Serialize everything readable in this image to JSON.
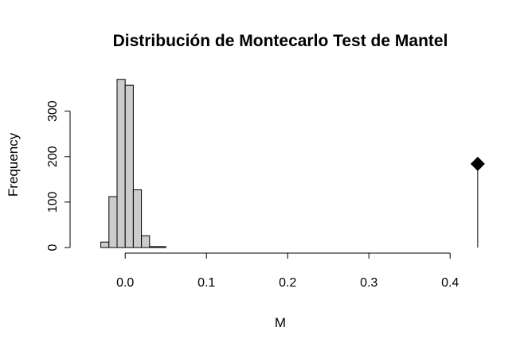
{
  "chart_data": {
    "type": "bar",
    "title": "Distribución de Montecarlo Test de Mantel",
    "xlabel": "M",
    "ylabel": "Frequency",
    "xlim": [
      -0.06,
      0.44
    ],
    "ylim": [
      0,
      380
    ],
    "x_ticks": [
      0.0,
      0.1,
      0.2,
      0.3,
      0.4
    ],
    "x_tick_labels": [
      "0.0",
      "0.1",
      "0.2",
      "0.3",
      "0.4"
    ],
    "y_ticks": [
      0,
      100,
      200,
      300
    ],
    "y_tick_labels": [
      "0",
      "100",
      "200",
      "300"
    ],
    "bins": [
      {
        "x0": -0.03,
        "x1": -0.02,
        "count": 12
      },
      {
        "x0": -0.02,
        "x1": -0.01,
        "count": 112
      },
      {
        "x0": -0.01,
        "x1": 0.0,
        "count": 370
      },
      {
        "x0": 0.0,
        "x1": 0.01,
        "count": 357
      },
      {
        "x0": 0.01,
        "x1": 0.02,
        "count": 127
      },
      {
        "x0": 0.02,
        "x1": 0.03,
        "count": 26
      },
      {
        "x0": 0.03,
        "x1": 0.04,
        "count": 2
      },
      {
        "x0": 0.04,
        "x1": 0.05,
        "count": 2
      }
    ],
    "observed": {
      "x": 0.434,
      "y": 184
    },
    "bar_fill": "#cccccc",
    "bar_stroke": "#000000",
    "marker_color": "#000000",
    "grid": false,
    "legend": "none"
  }
}
